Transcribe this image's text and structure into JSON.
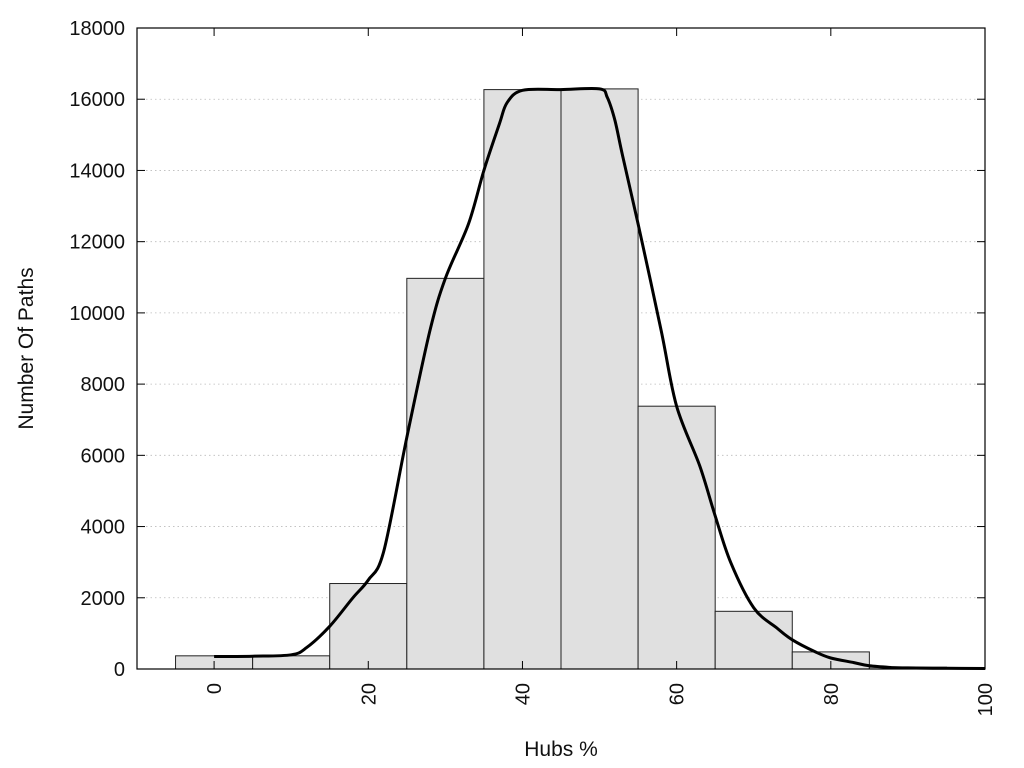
{
  "chart_data": {
    "type": "bar",
    "subtype": "histogram-with-curve",
    "xlabel": "Hubs %",
    "ylabel": "Number Of Paths",
    "xlim": [
      -10,
      100
    ],
    "ylim": [
      0,
      18000
    ],
    "x_ticks": [
      0,
      20,
      40,
      60,
      80,
      100
    ],
    "x_tick_labels": [
      "0",
      "20",
      "40",
      "60",
      "80",
      "100"
    ],
    "y_ticks": [
      0,
      2000,
      4000,
      6000,
      8000,
      10000,
      12000,
      14000,
      16000,
      18000
    ],
    "y_tick_labels": [
      "0",
      "2000",
      "4000",
      "6000",
      "8000",
      "10000",
      "12000",
      "14000",
      "16000",
      "18000"
    ],
    "bin_width": 10,
    "bins": [
      {
        "center": 0,
        "value": 370
      },
      {
        "center": 10,
        "value": 370
      },
      {
        "center": 20,
        "value": 2400
      },
      {
        "center": 30,
        "value": 10970
      },
      {
        "center": 40,
        "value": 16270
      },
      {
        "center": 50,
        "value": 16290
      },
      {
        "center": 60,
        "value": 7380
      },
      {
        "center": 70,
        "value": 1620
      },
      {
        "center": 80,
        "value": 480
      },
      {
        "center": 90,
        "value": 50
      }
    ],
    "curve": {
      "x": [
        0,
        5,
        10,
        12,
        15,
        18,
        20,
        22,
        25,
        28,
        30,
        33,
        35,
        37,
        38,
        40,
        45,
        50,
        51,
        52,
        53,
        55,
        58,
        60,
        63,
        65,
        67,
        70,
        73,
        75,
        78,
        80,
        83,
        85,
        88,
        90,
        95,
        100
      ],
      "y": [
        350,
        360,
        400,
        600,
        1200,
        2000,
        2500,
        3300,
        6500,
        9500,
        10970,
        12500,
        14000,
        15300,
        15900,
        16250,
        16270,
        16290,
        16050,
        15400,
        14400,
        12500,
        9500,
        7380,
        5700,
        4300,
        3000,
        1720,
        1150,
        820,
        480,
        310,
        180,
        90,
        40,
        30,
        20,
        15
      ]
    },
    "grid": {
      "y": true,
      "x": false,
      "style": "dotted"
    },
    "colors": {
      "bar_fill": "#e0e0e0",
      "bar_stroke": "#222222",
      "curve": "#000000",
      "grid": "#bbbbbb",
      "axis": "#000000"
    }
  }
}
